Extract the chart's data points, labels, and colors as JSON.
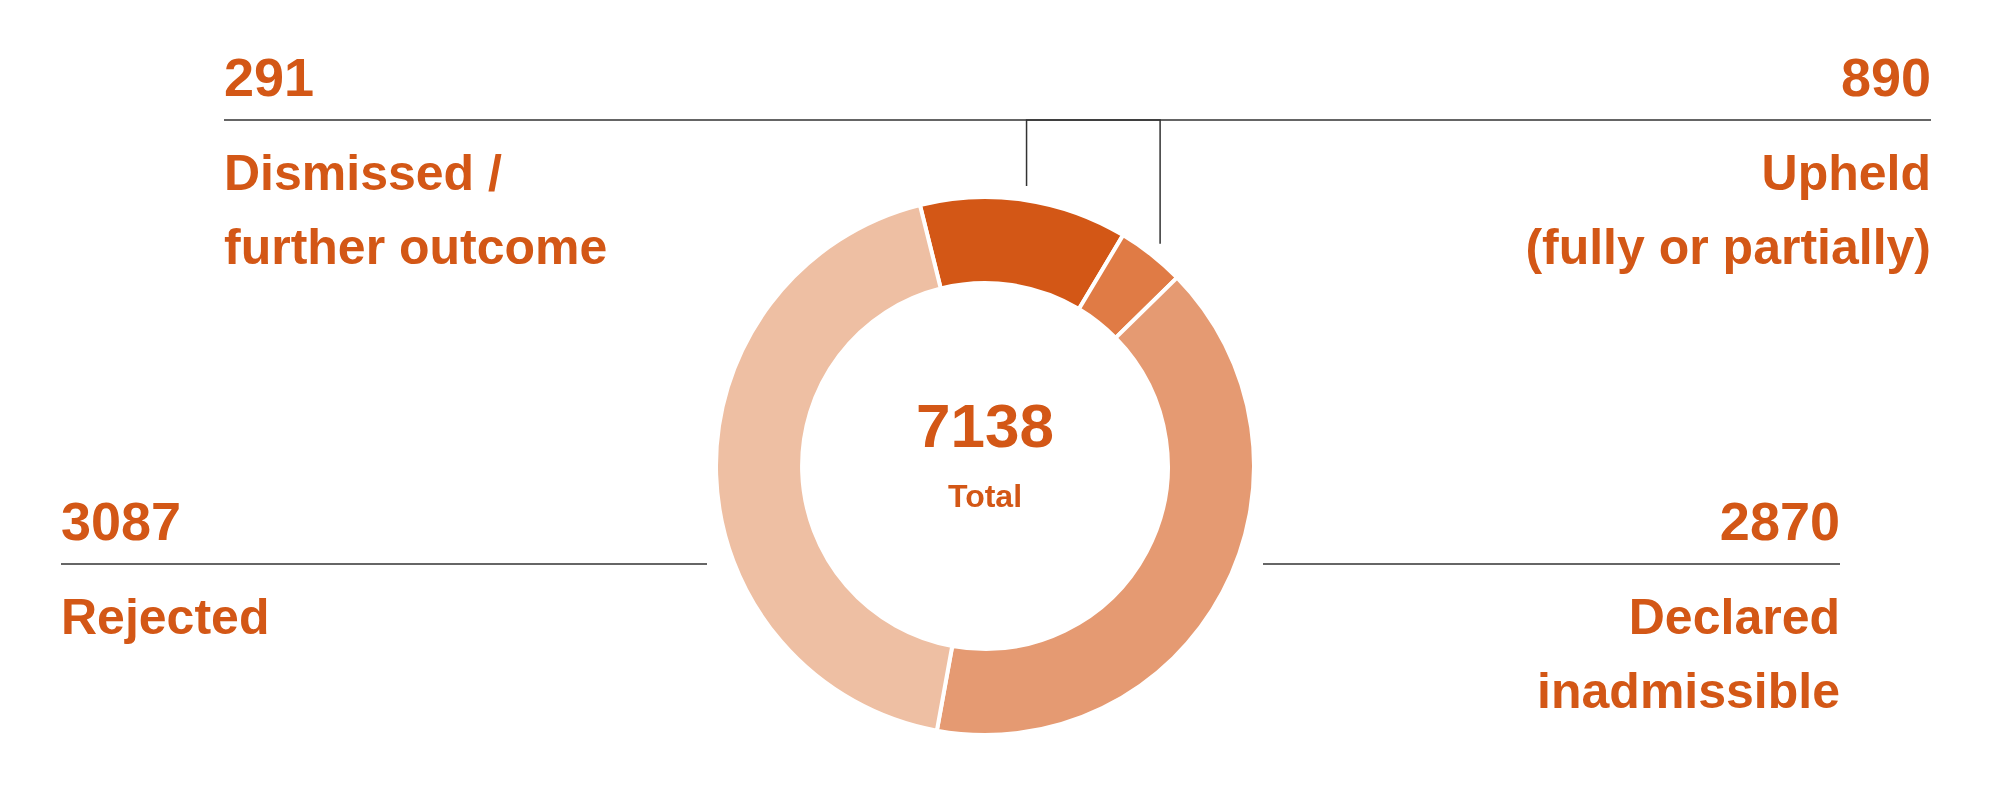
{
  "chart_data": {
    "type": "donut",
    "categories": [
      "Upheld\n(fully or partially)",
      "Dismissed /\nfurther outcome",
      "Declared\ninadmissible",
      "Rejected"
    ],
    "values": [
      890,
      291,
      2870,
      3087
    ],
    "colors": [
      "#d35716",
      "#e07b45",
      "#e59a72",
      "#eebfa3"
    ],
    "data_labels": true,
    "annotations": [
      "7138",
      "Total"
    ],
    "legend": false
  }
}
